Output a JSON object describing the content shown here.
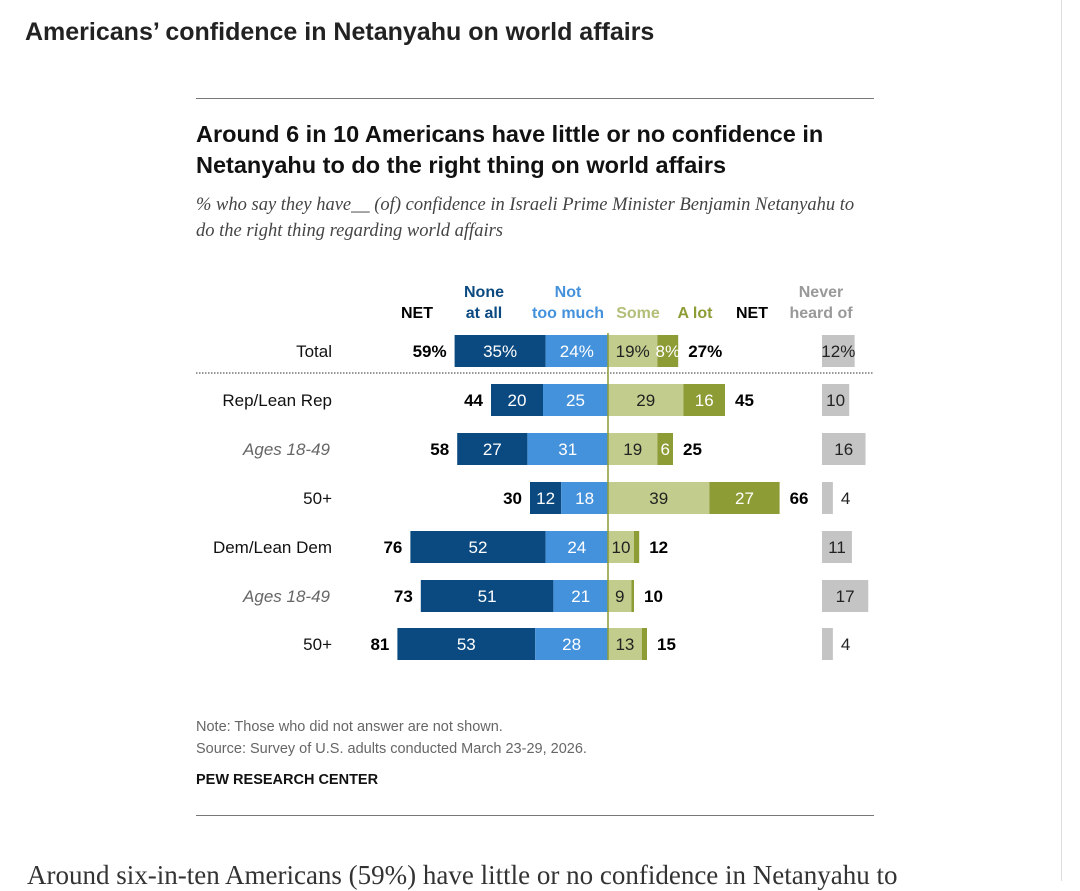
{
  "page_title": "Americans’ confidence in Netanyahu on world affairs",
  "body_text": "Around six-in-ten Americans (59%) have little or no confidence in Netanyahu to",
  "chart_data": {
    "type": "bar",
    "title": "Around 6 in 10 Americans have little or no confidence in Netanyahu to do the right thing on world affairs",
    "subtitle": "% who say they have__ (of) confidence in Israeli Prime Minister Benjamin Netanyahu to do the right thing regarding world affairs",
    "headers": {
      "net_neg": "NET",
      "none": "None at all",
      "not_much": "Not too much",
      "some": "Some",
      "a_lot": "A lot",
      "net_pos": "NET",
      "never": "Never heard of"
    },
    "colors": {
      "none": "#0b4a80",
      "not_much": "#4592dc",
      "some": "#c2cc8c",
      "a_lot": "#8e9c35",
      "never": "#c4c4c4"
    },
    "categories": [
      "Total",
      "Rep/Lean Rep",
      "Ages 18-49",
      "50+",
      "Dem/Lean Dem",
      "Ages 18-49",
      "50+"
    ],
    "category_italic": [
      false,
      false,
      true,
      false,
      false,
      true,
      false
    ],
    "series": [
      {
        "name": "None at all",
        "values": [
          35,
          20,
          27,
          12,
          52,
          51,
          53
        ],
        "labels": [
          "35%",
          "20",
          "27",
          "12",
          "52",
          "51",
          "53"
        ]
      },
      {
        "name": "Not too much",
        "values": [
          24,
          25,
          31,
          18,
          24,
          21,
          28
        ],
        "labels": [
          "24%",
          "25",
          "31",
          "18",
          "24",
          "21",
          "28"
        ]
      },
      {
        "name": "Some",
        "values": [
          19,
          29,
          19,
          39,
          10,
          9,
          13
        ],
        "labels": [
          "19%",
          "29",
          "19",
          "39",
          "10",
          "9",
          "13"
        ]
      },
      {
        "name": "A lot",
        "values": [
          8,
          16,
          6,
          27,
          2,
          1,
          2
        ],
        "labels": [
          "8%",
          "16",
          "6",
          "27",
          "",
          "",
          ""
        ]
      },
      {
        "name": "Never heard of",
        "values": [
          12,
          10,
          16,
          4,
          11,
          17,
          4
        ],
        "labels": [
          "12%",
          "10",
          "16",
          "4",
          "11",
          "17",
          "4"
        ]
      }
    ],
    "net_negative": [
      "59%",
      "44",
      "58",
      "30",
      "76",
      "73",
      "81"
    ],
    "net_positive": [
      "27%",
      "45",
      "25",
      "66",
      "12",
      "10",
      "15"
    ]
  },
  "note": "Note: Those who did not answer are not shown.",
  "source": "Source: Survey of U.S. adults conducted March 23-29, 2026.",
  "brand": "PEW RESEARCH CENTER"
}
